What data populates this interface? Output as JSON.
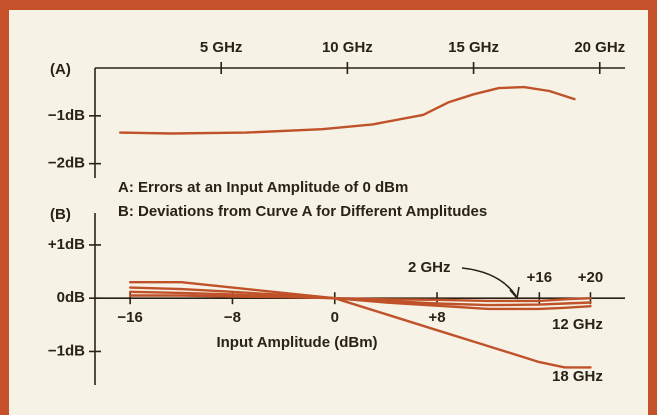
{
  "chart_data": [
    {
      "type": "line",
      "panel_label": "(A)",
      "x": [
        1,
        3,
        6,
        9,
        11,
        13,
        14,
        15,
        16,
        17,
        18,
        19
      ],
      "series": [
        {
          "color": "#c0522a",
          "values": [
            -1.35,
            -1.37,
            -1.35,
            -1.28,
            -1.18,
            -0.98,
            -0.72,
            -0.55,
            -0.42,
            -0.4,
            -0.48,
            -0.65
          ]
        }
      ],
      "xlim": [
        0,
        21
      ],
      "xticks": [
        {
          "value": 5,
          "label": "5 GHz"
        },
        {
          "value": 10,
          "label": "10 GHz"
        },
        {
          "value": 15,
          "label": "15 GHz"
        },
        {
          "value": 20,
          "label": "20 GHz"
        }
      ],
      "ylim": [
        -2.3,
        0
      ],
      "yticks": [
        {
          "value": -1,
          "label": "−1dB"
        },
        {
          "value": -2,
          "label": "−2dB"
        }
      ]
    },
    {
      "type": "line",
      "panel_label": "(B)",
      "annotations": [
        "A: Errors at an Input Amplitude of 0 dBm",
        "B: Deviations from Curve A for Different Amplitudes"
      ],
      "x_label": "Input Amplitude (dBm)",
      "x": [
        -16,
        -12,
        -8,
        -4,
        0,
        4,
        8,
        12,
        16,
        18,
        20
      ],
      "series": [
        {
          "name": "18 GHz",
          "color": "#c0522a",
          "values": [
            0.3,
            0.3,
            0.2,
            0.1,
            0,
            -0.3,
            -0.6,
            -0.9,
            -1.2,
            -1.3,
            -1.3
          ]
        },
        {
          "name": "12 GHz",
          "color": "#c0522a",
          "values": [
            0.2,
            0.17,
            0.12,
            0.06,
            0,
            -0.08,
            -0.14,
            -0.2,
            -0.2,
            -0.18,
            -0.15
          ]
        },
        {
          "color": "#c0522a",
          "values": [
            0.12,
            0.1,
            0.07,
            0.03,
            0,
            -0.05,
            -0.1,
            -0.13,
            -0.12,
            -0.1,
            -0.08
          ]
        },
        {
          "name": "2 GHz",
          "color": "#c0522a",
          "values": [
            0.05,
            0.05,
            0.03,
            0.02,
            0,
            -0.02,
            -0.03,
            -0.05,
            -0.05,
            -0.02,
            0
          ]
        }
      ],
      "xlim": [
        -18.75,
        22.7
      ],
      "xticks": [
        {
          "value": -16,
          "label": "−16"
        },
        {
          "value": -8,
          "label": "−8"
        },
        0,
        {
          "value": 8,
          "label": "+8"
        },
        {
          "value": 16,
          "label": "+16"
        },
        {
          "value": 20,
          "label": "+20"
        }
      ],
      "ylim": [
        -1.63,
        1.6
      ],
      "yticks": [
        {
          "value": 1,
          "label": "+1dB"
        },
        {
          "value": 0,
          "label": "0dB"
        },
        {
          "value": -1,
          "label": "−1dB"
        }
      ]
    }
  ]
}
